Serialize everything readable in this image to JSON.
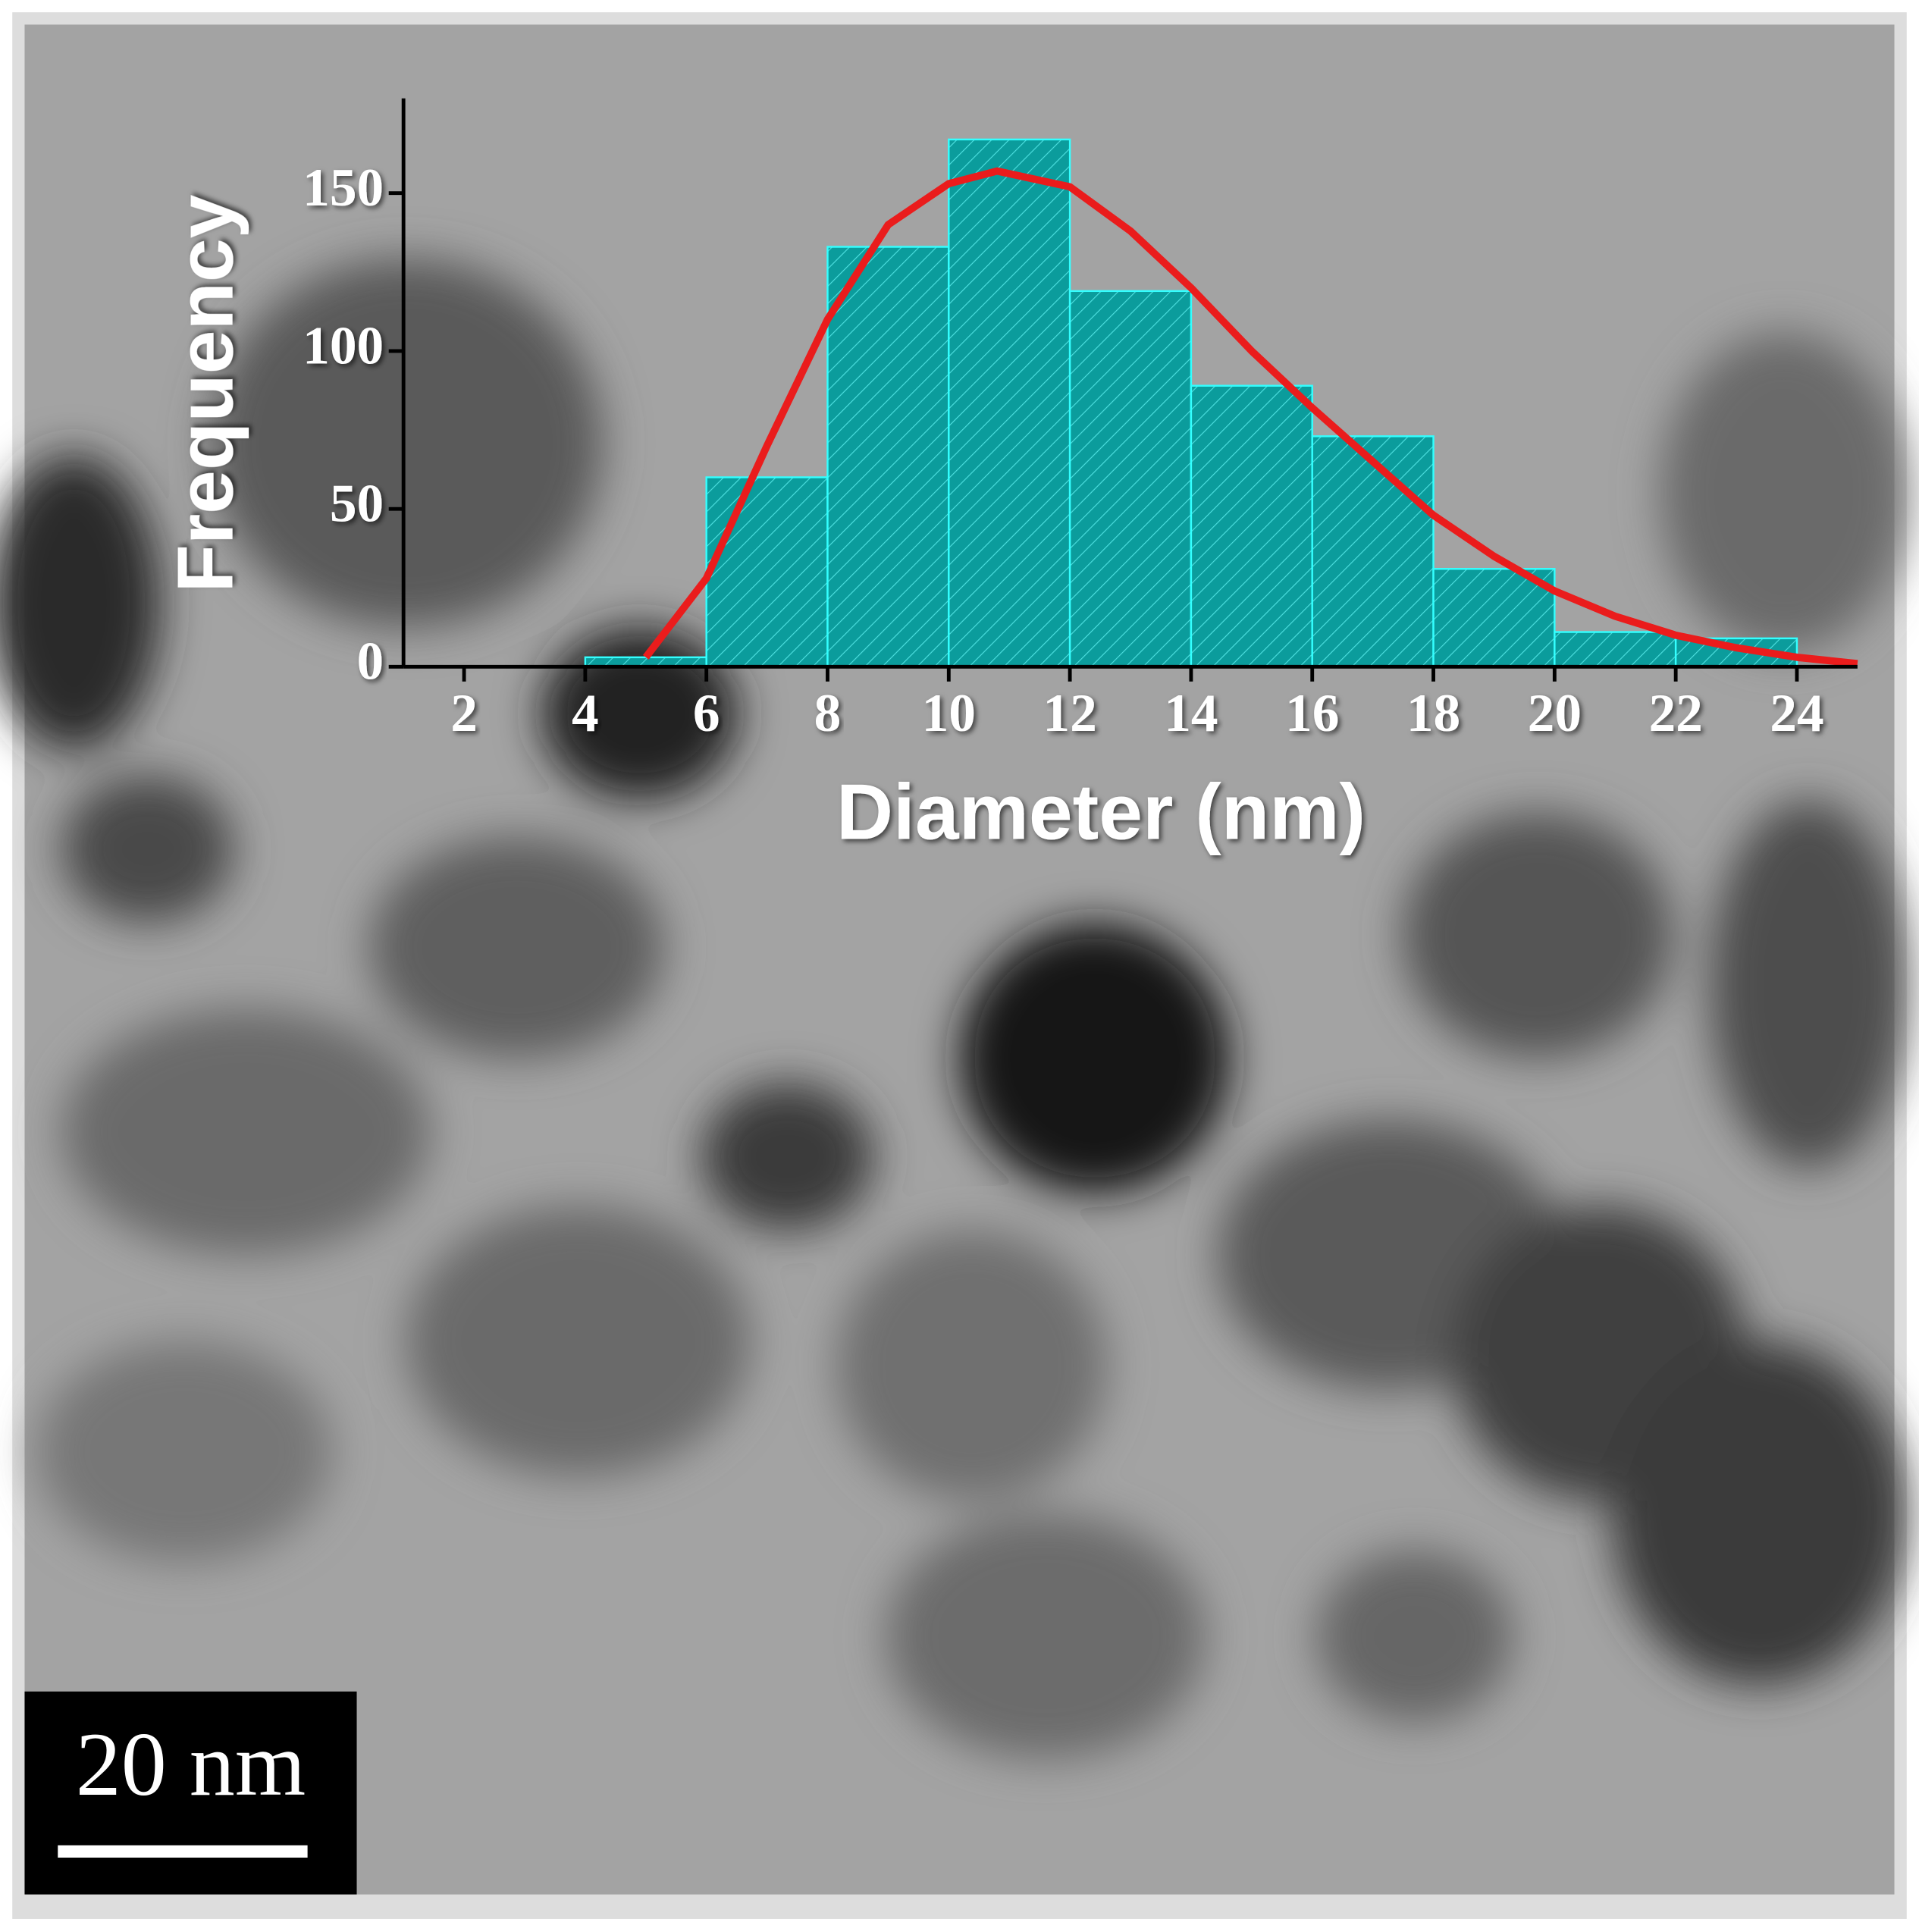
{
  "chart_data": {
    "type": "histogram",
    "x_label": "Diameter (nm)",
    "y_label": "Frequency",
    "bins": [
      4,
      6,
      8,
      10,
      12,
      14,
      16,
      18,
      20,
      22,
      24
    ],
    "counts": [
      3,
      60,
      133,
      167,
      119,
      89,
      73,
      31,
      11,
      9
    ],
    "color": "#0b9c9c",
    "edge_color": "#33ffff",
    "fit": {
      "color": "#ea1c1c",
      "x": [
        5,
        6,
        7,
        8,
        9,
        10,
        10.8,
        12,
        13,
        14,
        15,
        16,
        17,
        18,
        19,
        20,
        21,
        22,
        23,
        24,
        25
      ],
      "y": [
        3,
        28,
        70,
        110,
        140,
        153,
        157,
        152,
        138,
        120,
        100,
        82,
        65,
        48,
        35,
        24,
        16,
        10,
        6,
        3,
        1
      ]
    },
    "xlim": [
      1,
      25
    ],
    "xticks": [
      2,
      4,
      6,
      8,
      10,
      12,
      14,
      16,
      18,
      20,
      22,
      24
    ],
    "ylim": [
      0,
      180
    ],
    "yticks": [
      0,
      50,
      100,
      150
    ],
    "scale_bar_label": "20 nm"
  }
}
